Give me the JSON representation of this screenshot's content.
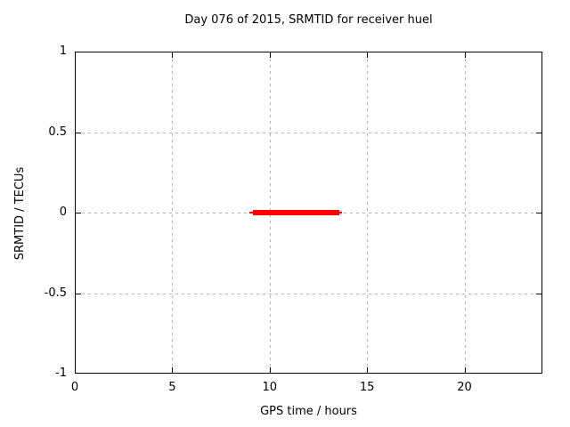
{
  "chart_data": {
    "type": "line",
    "title": "Day 076 of 2015, SRMTID for receiver huel",
    "xlabel": "GPS time / hours",
    "ylabel": "SRMTID / TECUs",
    "xlim": [
      0,
      24
    ],
    "ylim": [
      -1,
      1
    ],
    "grid": true,
    "grid_color": "#b4b4b4",
    "border_color": "#000000",
    "background_color": "#ffffff",
    "x_ticks": [
      {
        "v": 0,
        "label": "0"
      },
      {
        "v": 5,
        "label": "5"
      },
      {
        "v": 10,
        "label": "10"
      },
      {
        "v": 15,
        "label": "15"
      },
      {
        "v": 20,
        "label": "20"
      }
    ],
    "y_ticks": [
      {
        "v": 1,
        "label": "1"
      },
      {
        "v": 0.5,
        "label": "0.5"
      },
      {
        "v": 0,
        "label": "0"
      },
      {
        "v": -0.5,
        "label": "-0.5"
      },
      {
        "v": -1,
        "label": "-1"
      }
    ],
    "series": [
      {
        "name": "SRMTID",
        "color": "#ff0000",
        "points": [
          {
            "x": 8.95,
            "y": 0.0
          },
          {
            "x": 13.7,
            "y": 0.0
          }
        ],
        "segments": [
          {
            "x1": 8.95,
            "x2": 13.7,
            "y": 0.0,
            "lw": 2
          },
          {
            "x1": 9.13,
            "x2": 13.57,
            "y": 0.0,
            "lw": 6
          }
        ]
      }
    ]
  }
}
